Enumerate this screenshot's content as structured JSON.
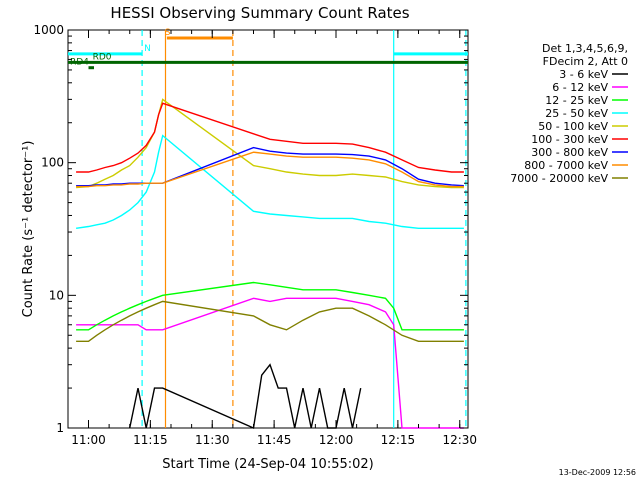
{
  "chart_data": {
    "type": "line",
    "title": "HESSI Observing Summary Count Rates",
    "xlabel": "Start Time (24-Sep-04 10:55:02)",
    "ylabel": "Count Rate (s⁻¹ detector⁻¹)",
    "yscale": "log",
    "xlim": [
      "10:55:02",
      "12:32:00"
    ],
    "ylim": [
      1,
      1000
    ],
    "x_ticks": [
      "11:00",
      "11:15",
      "11:30",
      "11:45",
      "12:00",
      "12:15",
      "12:30"
    ],
    "y_ticks": [
      {
        "value": 1,
        "label": "1"
      },
      {
        "value": 10,
        "label": "10"
      },
      {
        "value": 100,
        "label": "100"
      },
      {
        "value": 1000,
        "label": "1000"
      }
    ],
    "legend_header": [
      "Det 1,3,4,5,6,9,",
      "FDecim 2, Att 0"
    ],
    "legend_position": "right",
    "grid": false,
    "series": [
      {
        "name": "3 - 6 keV",
        "color": "#000000",
        "x": [
          "11:10",
          "11:12",
          "11:14",
          "11:16",
          "11:18",
          "11:40",
          "11:42",
          "11:44",
          "11:46",
          "11:48",
          "11:50",
          "11:52",
          "11:54",
          "11:56",
          "11:58",
          "12:00",
          "12:02",
          "12:04",
          "12:06"
        ],
        "y": [
          1.0,
          2.0,
          1.0,
          2.0,
          2.0,
          1.0,
          2.5,
          3.0,
          2.0,
          2.0,
          1.0,
          2.0,
          1.0,
          2.0,
          1.0,
          1.0,
          2.0,
          1.0,
          2.0
        ]
      },
      {
        "name": "6 - 12 keV",
        "color": "#ff00ff",
        "x": [
          "10:57",
          "11:00",
          "11:02",
          "11:04",
          "11:06",
          "11:08",
          "11:10",
          "11:12",
          "11:14",
          "11:16",
          "11:18",
          "11:40",
          "11:44",
          "11:48",
          "11:52",
          "11:56",
          "12:00",
          "12:04",
          "12:08",
          "12:12",
          "12:14",
          "12:16",
          "12:20",
          "12:24",
          "12:28",
          "12:31"
        ],
        "y": [
          6,
          6,
          6,
          6,
          6,
          6,
          6,
          6,
          5.5,
          5.5,
          5.5,
          9.5,
          9.0,
          9.5,
          9.5,
          9.5,
          9.5,
          9.0,
          8.5,
          7.5,
          6.0,
          1.0,
          1.0,
          1.0,
          1.0,
          1.0
        ]
      },
      {
        "name": "12 - 25 keV",
        "color": "#00ff00",
        "x": [
          "10:57",
          "11:00",
          "11:02",
          "11:04",
          "11:06",
          "11:08",
          "11:10",
          "11:12",
          "11:14",
          "11:16",
          "11:18",
          "11:40",
          "11:44",
          "11:48",
          "11:52",
          "11:56",
          "12:00",
          "12:04",
          "12:08",
          "12:12",
          "12:14",
          "12:16",
          "12:20",
          "12:24",
          "12:28",
          "12:31"
        ],
        "y": [
          5.5,
          5.5,
          6.0,
          6.5,
          7.0,
          7.5,
          8.0,
          8.5,
          9.0,
          9.5,
          10.0,
          12.5,
          12.0,
          11.5,
          11.0,
          11.0,
          11.0,
          10.5,
          10.0,
          9.5,
          8.0,
          5.5,
          5.5,
          5.5,
          5.5,
          5.5
        ]
      },
      {
        "name": "25 - 50 keV",
        "color": "#00ffff",
        "x": [
          "10:57",
          "11:00",
          "11:02",
          "11:04",
          "11:06",
          "11:08",
          "11:10",
          "11:12",
          "11:14",
          "11:16",
          "11:17",
          "11:18",
          "11:40",
          "11:44",
          "11:48",
          "11:52",
          "11:56",
          "12:00",
          "12:04",
          "12:08",
          "12:12",
          "12:16",
          "12:20",
          "12:24",
          "12:28",
          "12:31"
        ],
        "y": [
          32,
          33,
          34,
          35,
          37,
          40,
          44,
          50,
          60,
          85,
          120,
          160,
          43,
          41,
          40,
          39,
          38,
          38,
          38,
          36,
          35,
          33,
          32,
          32,
          32,
          32
        ]
      },
      {
        "name": "50 - 100 keV",
        "color": "#cccc00",
        "x": [
          "10:57",
          "11:00",
          "11:02",
          "11:04",
          "11:06",
          "11:08",
          "11:10",
          "11:12",
          "11:14",
          "11:16",
          "11:17",
          "11:18",
          "11:40",
          "11:44",
          "11:48",
          "11:52",
          "11:56",
          "12:00",
          "12:04",
          "12:08",
          "12:12",
          "12:16",
          "12:20",
          "12:24",
          "12:28",
          "12:31"
        ],
        "y": [
          65,
          66,
          70,
          75,
          80,
          88,
          95,
          110,
          130,
          170,
          230,
          300,
          95,
          90,
          85,
          82,
          80,
          80,
          82,
          80,
          78,
          72,
          68,
          66,
          65,
          65
        ]
      },
      {
        "name": "100 - 300 keV",
        "color": "#ff0000",
        "x": [
          "10:57",
          "11:00",
          "11:02",
          "11:04",
          "11:06",
          "11:08",
          "11:10",
          "11:12",
          "11:14",
          "11:16",
          "11:17",
          "11:18",
          "11:40",
          "11:44",
          "11:48",
          "11:52",
          "11:56",
          "12:00",
          "12:04",
          "12:08",
          "12:12",
          "12:16",
          "12:20",
          "12:24",
          "12:28",
          "12:31"
        ],
        "y": [
          85,
          85,
          88,
          92,
          95,
          100,
          108,
          118,
          135,
          170,
          230,
          280,
          165,
          150,
          145,
          140,
          140,
          140,
          138,
          130,
          120,
          105,
          92,
          88,
          85,
          85
        ]
      },
      {
        "name": "300 - 800 keV",
        "color": "#0000ff",
        "x": [
          "10:57",
          "11:00",
          "11:02",
          "11:04",
          "11:06",
          "11:08",
          "11:10",
          "11:12",
          "11:14",
          "11:16",
          "11:18",
          "11:40",
          "11:44",
          "11:48",
          "11:52",
          "11:56",
          "12:00",
          "12:04",
          "12:08",
          "12:12",
          "12:16",
          "12:20",
          "12:24",
          "12:28",
          "12:31"
        ],
        "y": [
          67,
          67,
          68,
          68,
          69,
          69,
          70,
          70,
          70,
          70,
          70,
          130,
          122,
          118,
          116,
          116,
          116,
          115,
          112,
          105,
          90,
          75,
          70,
          68,
          67
        ]
      },
      {
        "name": "800 - 7000 keV",
        "color": "#ff8c00",
        "x": [
          "10:57",
          "11:00",
          "11:02",
          "11:04",
          "11:06",
          "11:08",
          "11:10",
          "11:12",
          "11:14",
          "11:16",
          "11:18",
          "11:40",
          "11:44",
          "11:48",
          "11:52",
          "11:56",
          "12:00",
          "12:04",
          "12:08",
          "12:12",
          "12:16",
          "12:20",
          "12:24",
          "12:28",
          "12:31"
        ],
        "y": [
          66,
          66,
          67,
          67,
          68,
          68,
          69,
          69,
          70,
          70,
          70,
          120,
          116,
          112,
          110,
          110,
          110,
          108,
          105,
          98,
          85,
          72,
          68,
          66,
          66
        ]
      },
      {
        "name": "7000 - 20000 keV",
        "color": "#808000",
        "x": [
          "10:57",
          "11:00",
          "11:02",
          "11:04",
          "11:06",
          "11:08",
          "11:10",
          "11:12",
          "11:14",
          "11:16",
          "11:18",
          "11:40",
          "11:44",
          "11:48",
          "11:52",
          "11:56",
          "12:00",
          "12:04",
          "12:08",
          "12:12",
          "12:16",
          "12:20",
          "12:24",
          "12:28",
          "12:31"
        ],
        "y": [
          4.5,
          4.5,
          5.0,
          5.5,
          6.0,
          6.5,
          7.0,
          7.5,
          8.0,
          8.5,
          9.0,
          7.0,
          6.0,
          5.5,
          6.5,
          7.5,
          8.0,
          8.0,
          7.0,
          6.0,
          5.0,
          4.5,
          4.5,
          4.5,
          4.5
        ]
      }
    ],
    "flags": [
      {
        "label": "N",
        "color": "#00ffff",
        "y": 660,
        "x_start": "10:55:02",
        "x_end": "11:13:00",
        "label_at": "11:13:00"
      },
      {
        "label": "S",
        "color": "#ff8c00",
        "y": 870,
        "x_start": "11:19:00",
        "x_end": "11:35:00",
        "label_at": "11:18:00"
      },
      {
        "label": "RD0",
        "color": "#006400",
        "y": 570,
        "x_start": "10:55:02",
        "x_end": "12:32:00",
        "label_at": "11:00:30"
      },
      {
        "label": "RD4",
        "color": "#006400",
        "y": 520,
        "x_start": "11:00:00",
        "x_end": "11:01:20",
        "label_at": "10:55:02"
      },
      {
        "label": "",
        "color": "#00ffff",
        "y": 660,
        "x_start": "12:14:00",
        "x_end": "12:32:00",
        "label_at": ""
      }
    ],
    "vertical_lines": [
      {
        "x": "11:13:00",
        "color": "#00ffff",
        "style": "dashed"
      },
      {
        "x": "11:18:40",
        "color": "#ff8c00",
        "style": "solid"
      },
      {
        "x": "11:35:00",
        "color": "#ff8c00",
        "style": "dashed"
      },
      {
        "x": "12:14:00",
        "color": "#00ffff",
        "style": "solid"
      },
      {
        "x": "12:31:30",
        "color": "#00ffff",
        "style": "dashed"
      }
    ],
    "footer_timestamp": "13-Dec-2009 12:56"
  }
}
